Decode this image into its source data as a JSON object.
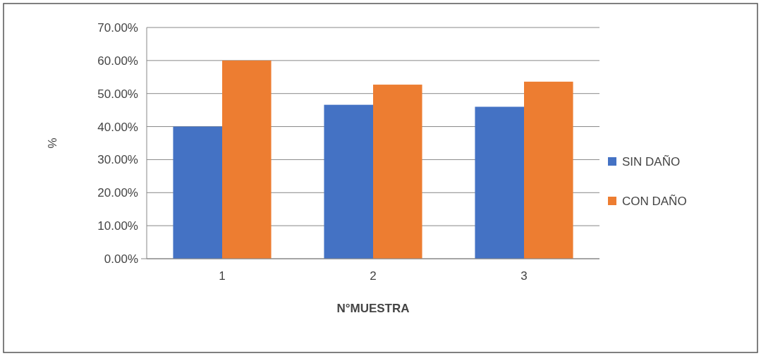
{
  "chart_data": {
    "type": "bar",
    "xlabel": "N°MUESTRA",
    "ylabel": "%",
    "categories": [
      "1",
      "2",
      "3"
    ],
    "series": [
      {
        "name": "SIN DAÑO",
        "color": "#4472c4",
        "values": [
          40.0,
          46.6,
          46.0
        ]
      },
      {
        "name": "CON DAÑO",
        "color": "#ed7d31",
        "values": [
          60.0,
          52.7,
          53.6
        ]
      }
    ],
    "ylim": [
      0,
      70
    ],
    "yticks": [
      {
        "value": 0,
        "label": "0.00%"
      },
      {
        "value": 10,
        "label": "10.00%"
      },
      {
        "value": 20,
        "label": "20.00%"
      },
      {
        "value": 30,
        "label": "30.00%"
      },
      {
        "value": 40,
        "label": "40.00%"
      },
      {
        "value": 50,
        "label": "50.00%"
      },
      {
        "value": 60,
        "label": "60.00%"
      },
      {
        "value": 70,
        "label": "70.00%"
      }
    ],
    "grid": "y",
    "legend": "right"
  }
}
